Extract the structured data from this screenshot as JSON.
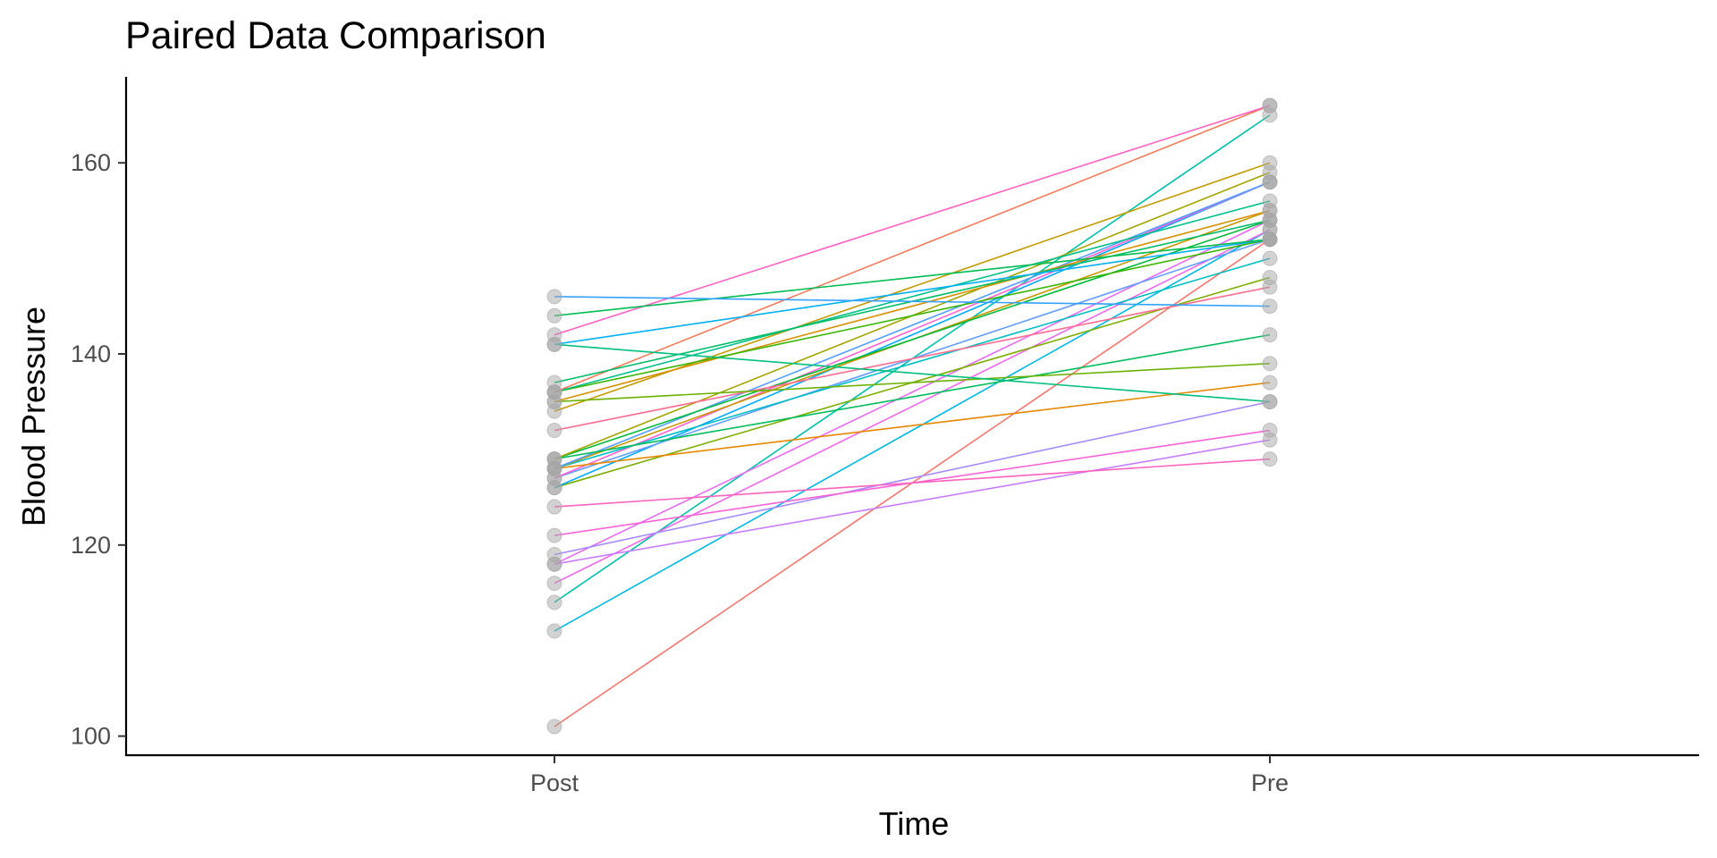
{
  "chart_data": {
    "type": "line",
    "title": "Paired Data Comparison",
    "xlabel": "Time",
    "ylabel": "Blood Pressure",
    "categories": [
      "Post",
      "Pre"
    ],
    "ylim": [
      98,
      169
    ],
    "yticks": [
      100,
      120,
      140,
      160
    ],
    "grid": false,
    "legend": "none",
    "point_color": "#a6a6a6",
    "pairs": [
      {
        "post": 101,
        "pre": 152,
        "color": "#f8766d"
      },
      {
        "post": 111,
        "pre": 153,
        "color": "#00b8e7"
      },
      {
        "post": 114,
        "pre": 165,
        "color": "#00c1aa"
      },
      {
        "post": 116,
        "pre": 153,
        "color": "#f066ea"
      },
      {
        "post": 118,
        "pre": 131,
        "color": "#c77cff"
      },
      {
        "post": 118,
        "pre": 154,
        "color": "#e76bf3"
      },
      {
        "post": 119,
        "pre": 135,
        "color": "#a58aff"
      },
      {
        "post": 121,
        "pre": 132,
        "color": "#fb61d7"
      },
      {
        "post": 124,
        "pre": 129,
        "color": "#ff62bc"
      },
      {
        "post": 126,
        "pre": 148,
        "color": "#7cae00"
      },
      {
        "post": 126,
        "pre": 158,
        "color": "#00a9ff"
      },
      {
        "post": 127,
        "pre": 152,
        "color": "#619cff"
      },
      {
        "post": 127,
        "pre": 158,
        "color": "#fd61d1"
      },
      {
        "post": 128,
        "pre": 137,
        "color": "#e58700"
      },
      {
        "post": 128,
        "pre": 150,
        "color": "#00bfc4"
      },
      {
        "post": 128,
        "pre": 155,
        "color": "#c99800"
      },
      {
        "post": 128,
        "pre": 158,
        "color": "#529eff"
      },
      {
        "post": 129,
        "pre": 142,
        "color": "#00bd5c"
      },
      {
        "post": 129,
        "pre": 154,
        "color": "#00ba38"
      },
      {
        "post": 129,
        "pre": 159,
        "color": "#a3a500"
      },
      {
        "post": 132,
        "pre": 147,
        "color": "#ff6c91"
      },
      {
        "post": 134,
        "pre": 160,
        "color": "#c49a00"
      },
      {
        "post": 135,
        "pre": 139,
        "color": "#6bb100"
      },
      {
        "post": 135,
        "pre": 155,
        "color": "#d89000"
      },
      {
        "post": 136,
        "pre": 152,
        "color": "#39b600"
      },
      {
        "post": 136,
        "pre": 156,
        "color": "#00c08b"
      },
      {
        "post": 136,
        "pre": 166,
        "color": "#f37b59"
      },
      {
        "post": 137,
        "pre": 154,
        "color": "#00be67"
      },
      {
        "post": 141,
        "pre": 135,
        "color": "#00bf7d"
      },
      {
        "post": 141,
        "pre": 152,
        "color": "#00b0f6"
      },
      {
        "post": 142,
        "pre": 166,
        "color": "#ff61c3"
      },
      {
        "post": 144,
        "pre": 152,
        "color": "#00bc51"
      },
      {
        "post": 146,
        "pre": 145,
        "color": "#35a2ff"
      }
    ]
  }
}
